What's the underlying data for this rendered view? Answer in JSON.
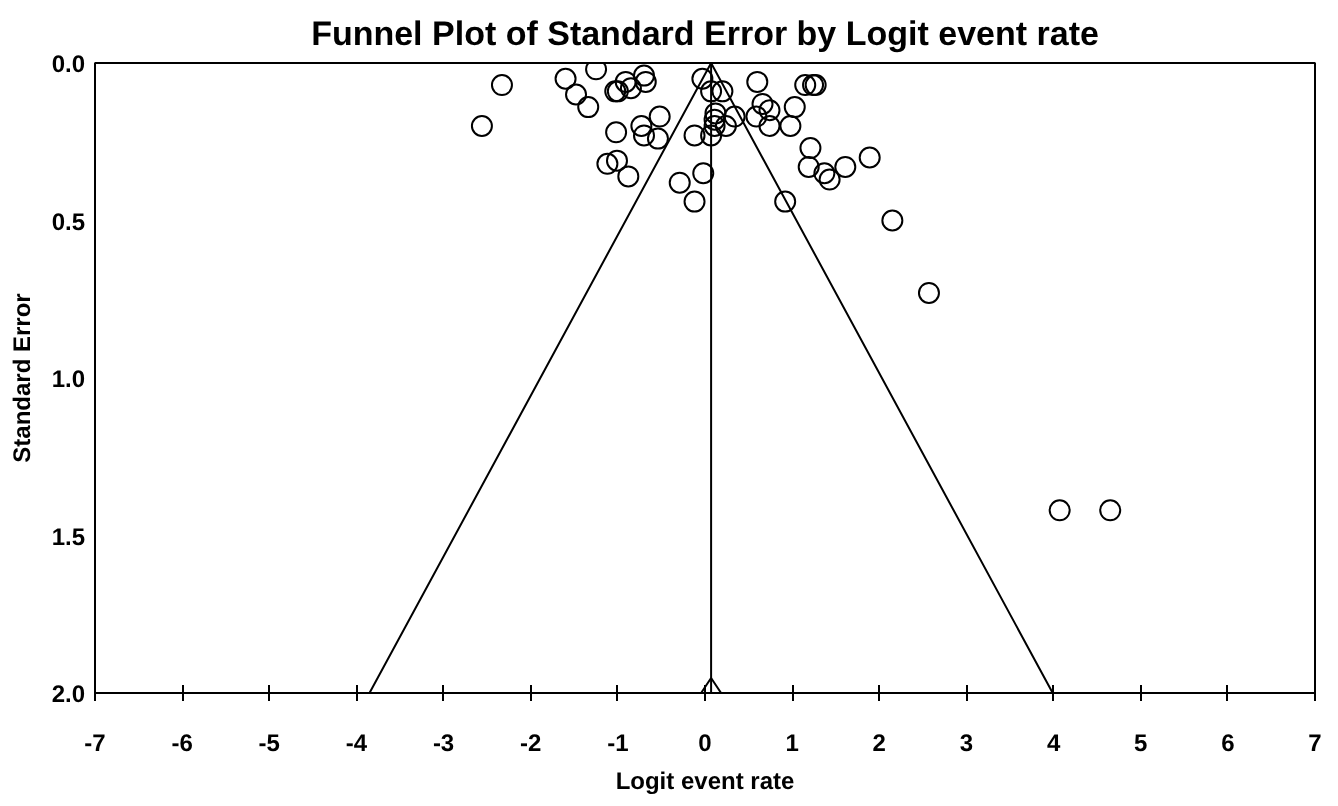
{
  "chart_data": {
    "type": "scatter",
    "title": "Funnel Plot of Standard Error by Logit event rate",
    "xlabel": "Logit event rate",
    "ylabel": "Standard Error",
    "xlim": [
      -7,
      7
    ],
    "ylim": [
      2.0,
      0.0
    ],
    "xticks": [
      -7,
      -6,
      -5,
      -4,
      -3,
      -2,
      -1,
      0,
      1,
      2,
      3,
      4,
      5,
      6,
      7
    ],
    "yticks": [
      {
        "value": 0,
        "label": "0.0"
      },
      {
        "value": 0.5,
        "label": "0.5"
      },
      {
        "value": 1,
        "label": "1.0"
      },
      {
        "value": 1.5,
        "label": "1.5"
      },
      {
        "value": 2,
        "label": "2.0"
      }
    ],
    "grid": false,
    "ref_lines": [
      {
        "axis": "x",
        "value": 0.07,
        "color": "#000000"
      }
    ],
    "series": [
      {
        "color": "#000000",
        "marker": "circle",
        "x": [
          -2.33,
          -2.56,
          -1.6,
          -1.48,
          -1.34,
          -1.25,
          -1.03,
          -1.0,
          -0.91,
          -0.85,
          -0.7,
          -0.68,
          -1.02,
          -0.73,
          -0.7,
          -0.52,
          -0.54,
          -1.12,
          -1.01,
          -0.88,
          -0.29,
          -0.12,
          -0.02,
          -0.12,
          -0.03,
          0.07,
          0.2,
          0.07,
          0.12,
          0.11,
          0.24,
          0.34,
          0.11,
          0.6,
          0.59,
          0.66,
          0.74,
          0.74,
          0.98,
          1.03,
          1.15,
          1.24,
          1.27,
          1.21,
          1.19,
          1.37,
          1.43,
          1.61,
          1.89,
          0.92,
          2.15,
          2.57,
          4.07,
          4.65
        ],
        "values": [
          0.07,
          0.2,
          0.05,
          0.1,
          0.14,
          0.02,
          0.09,
          0.09,
          0.06,
          0.08,
          0.04,
          0.06,
          0.22,
          0.2,
          0.23,
          0.17,
          0.24,
          0.32,
          0.31,
          0.36,
          0.38,
          0.44,
          0.35,
          0.23,
          0.05,
          0.09,
          0.09,
          0.23,
          0.16,
          0.2,
          0.2,
          0.17,
          0.18,
          0.06,
          0.17,
          0.13,
          0.2,
          0.15,
          0.2,
          0.14,
          0.07,
          0.07,
          0.07,
          0.27,
          0.33,
          0.35,
          0.37,
          0.33,
          0.3,
          0.44,
          0.5,
          0.73,
          1.42,
          1.42
        ]
      },
      {
        "type": "line",
        "color": "#000000",
        "x": [
          -3.85,
          0.07,
          3.99
        ],
        "values": [
          2.0,
          0.0,
          2.0
        ]
      },
      {
        "type": "scatter",
        "color": "#000000",
        "marker": "diamond",
        "x": [
          0.07
        ],
        "values": [
          2.0
        ]
      }
    ]
  }
}
